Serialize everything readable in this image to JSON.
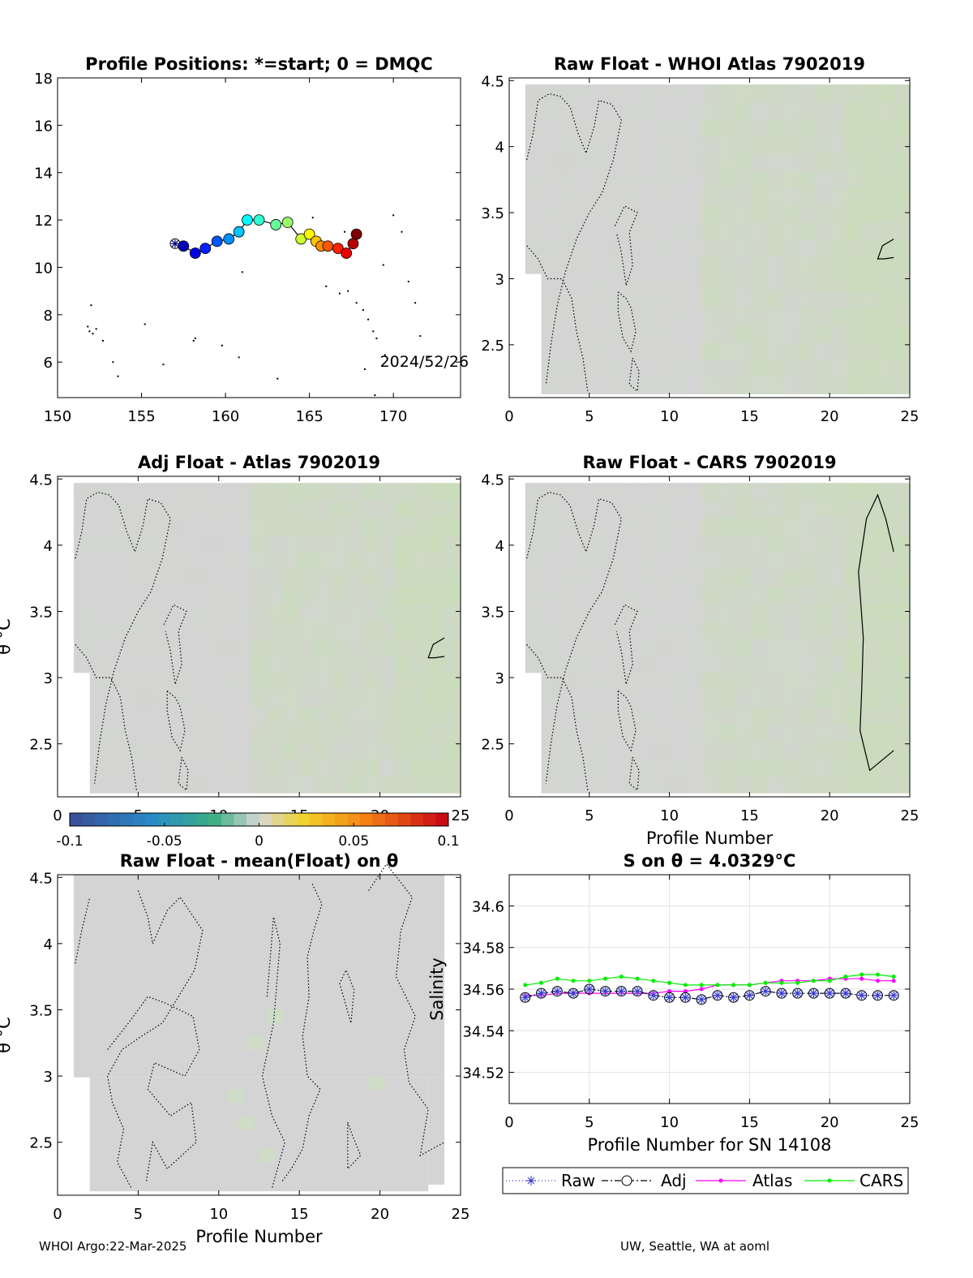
{
  "footer": {
    "left": "WHOI Argo:22-Mar-2025",
    "right": "UW, Seattle, WA at aoml"
  },
  "colors": {
    "raw": "#3333cc",
    "adj": "#000000",
    "atlas": "#ff00ff",
    "cars": "#00ee00",
    "field": "#d4d4d4"
  },
  "chart_data": [
    {
      "type": "scatter",
      "title": "Profile Positions: *=start; 0 = DMQC",
      "xlim": [
        150,
        174
      ],
      "ylim": [
        4.5,
        18
      ],
      "xticks": [
        150,
        155,
        160,
        165,
        170
      ],
      "yticks": [
        6,
        8,
        10,
        12,
        14,
        16,
        18
      ],
      "annotation": "2024/52/26",
      "colormap": "jet",
      "x": [
        157.0,
        157.5,
        158.2,
        158.8,
        159.5,
        160.2,
        160.8,
        161.3,
        162.0,
        163.0,
        163.7,
        164.5,
        165.0,
        165.4,
        165.7,
        166.1,
        166.7,
        167.2,
        167.6,
        167.8
      ],
      "y": [
        11.0,
        10.9,
        10.6,
        10.8,
        11.1,
        11.2,
        11.5,
        12.0,
        12.0,
        11.8,
        11.9,
        11.2,
        11.4,
        11.1,
        10.9,
        10.9,
        10.8,
        10.6,
        11.0,
        11.4
      ]
    },
    {
      "type": "heatmap",
      "title": "Raw Float - WHOI Atlas  7902019",
      "xlim": [
        0,
        25
      ],
      "ylim": [
        2.1,
        4.52
      ],
      "xticks": [
        0,
        5,
        10,
        15,
        20,
        25
      ],
      "yticks": [
        2.5,
        3,
        3.5,
        4,
        4.5
      ],
      "xlabel": "",
      "ylabel": ""
    },
    {
      "type": "heatmap",
      "title": "Adj Float - Atlas  7902019",
      "xlim": [
        0,
        25
      ],
      "ylim": [
        2.1,
        4.52
      ],
      "xticks": [
        0,
        5,
        10,
        15,
        20,
        25
      ],
      "yticks": [
        2.5,
        3,
        3.5,
        4,
        4.5
      ],
      "xlabel": "",
      "ylabel": "θ °C"
    },
    {
      "type": "heatmap",
      "title": "Raw Float - CARS  7902019",
      "xlim": [
        0,
        25
      ],
      "ylim": [
        2.1,
        4.52
      ],
      "xticks": [
        0,
        5,
        10,
        15,
        20,
        25
      ],
      "yticks": [
        2.5,
        3,
        3.5,
        4,
        4.5
      ],
      "xlabel": "Profile Number",
      "ylabel": ""
    },
    {
      "type": "heatmap",
      "title": "Raw Float - mean(Float) on θ",
      "xlim": [
        0,
        25
      ],
      "ylim": [
        2.1,
        4.52
      ],
      "xticks": [
        0,
        5,
        10,
        15,
        20,
        25
      ],
      "yticks": [
        2.5,
        3,
        3.5,
        4,
        4.5
      ],
      "xlabel": "Profile Number",
      "ylabel": "θ °C"
    },
    {
      "type": "line",
      "title": "S on θ = 4.0329°C",
      "xlim": [
        0,
        25
      ],
      "ylim": [
        34.505,
        34.615
      ],
      "xticks": [
        0,
        5,
        10,
        15,
        20,
        25
      ],
      "yticks": [
        34.52,
        34.54,
        34.56,
        34.58,
        34.6
      ],
      "xlabel": "Profile Number for SN 14108",
      "ylabel": "Salinity",
      "x": [
        1,
        2,
        3,
        4,
        5,
        6,
        7,
        8,
        9,
        10,
        11,
        12,
        13,
        14,
        15,
        16,
        17,
        18,
        19,
        20,
        21,
        22,
        23,
        24
      ],
      "legend": [
        "Raw",
        "Adj",
        "Atlas",
        "CARS"
      ],
      "series": [
        {
          "name": "Raw",
          "values": [
            34.556,
            34.558,
            34.559,
            34.558,
            34.56,
            34.559,
            34.559,
            34.559,
            34.557,
            34.556,
            34.556,
            34.555,
            34.557,
            34.556,
            34.557,
            34.559,
            34.558,
            34.558,
            34.558,
            34.558,
            34.558,
            34.557,
            34.557,
            34.557
          ]
        },
        {
          "name": "Adj",
          "values": [
            34.556,
            34.558,
            34.559,
            34.558,
            34.56,
            34.559,
            34.559,
            34.559,
            34.557,
            34.556,
            34.556,
            34.555,
            34.557,
            34.556,
            34.557,
            34.559,
            34.558,
            34.558,
            34.558,
            34.558,
            34.558,
            34.557,
            34.557,
            34.557
          ]
        },
        {
          "name": "Atlas",
          "values": [
            34.557,
            34.557,
            34.558,
            34.558,
            34.558,
            34.558,
            34.558,
            34.558,
            34.558,
            34.559,
            34.559,
            34.56,
            34.562,
            34.562,
            34.562,
            34.563,
            34.564,
            34.564,
            34.564,
            34.565,
            34.565,
            34.565,
            34.564,
            34.564
          ]
        },
        {
          "name": "CARS",
          "values": [
            34.562,
            34.563,
            34.565,
            34.564,
            34.564,
            34.565,
            34.566,
            34.565,
            34.564,
            34.563,
            34.562,
            34.562,
            34.562,
            34.562,
            34.562,
            34.563,
            34.563,
            34.563,
            34.564,
            34.564,
            34.566,
            34.567,
            34.567,
            34.566
          ]
        }
      ]
    }
  ],
  "colorbar": {
    "min": -0.1,
    "max": 0.1,
    "ticks": [
      "-0.1",
      "-0.05",
      "0",
      "0.05",
      "0.1"
    ]
  }
}
